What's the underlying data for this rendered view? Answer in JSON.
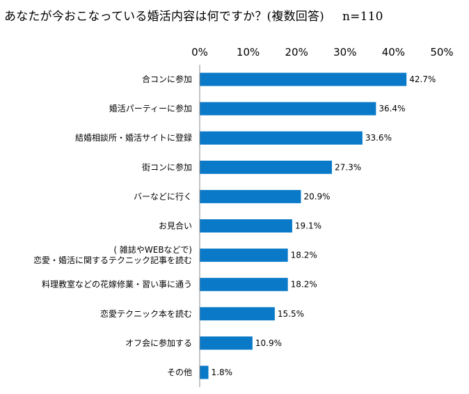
{
  "title": "あなたが今おこなっている婚活内容は何ですか？(複数回答)",
  "sample_size": "n=110",
  "colors": {
    "bar": "#0a7ac8",
    "axis": "#888888",
    "text": "#000000"
  },
  "chart_data": {
    "type": "bar",
    "orientation": "horizontal",
    "title": "あなたが今おこなっている婚活内容は何ですか？(複数回答)",
    "xlim": [
      0,
      50
    ],
    "ticks": [
      0,
      10,
      20,
      30,
      40,
      50
    ],
    "tick_labels": [
      "0%",
      "10%",
      "20%",
      "30%",
      "40%",
      "50%"
    ],
    "axis_position": "top",
    "grid": false,
    "categories": [
      [
        "合コンに参加"
      ],
      [
        "婚活パーティーに参加"
      ],
      [
        "結婚相談所・婚活サイトに登録"
      ],
      [
        "街コンに参加"
      ],
      [
        "バーなどに行く"
      ],
      [
        "お見合い"
      ],
      [
        "( 雑誌やWEBなどで)",
        "恋愛・婚活に関するテクニック記事を読む"
      ],
      [
        "料理教室などの花嫁修業・習い事に通う"
      ],
      [
        "恋愛テクニック本を読む"
      ],
      [
        "オフ会に参加する"
      ],
      [
        "その他"
      ]
    ],
    "values": [
      42.7,
      36.4,
      33.6,
      27.3,
      20.9,
      19.1,
      18.2,
      18.2,
      15.5,
      10.9,
      1.8
    ],
    "value_labels": [
      "42.7%",
      "36.4%",
      "33.6%",
      "27.3%",
      "20.9%",
      "19.1%",
      "18.2%",
      "18.2%",
      "15.5%",
      "10.9%",
      "1.8%"
    ]
  }
}
